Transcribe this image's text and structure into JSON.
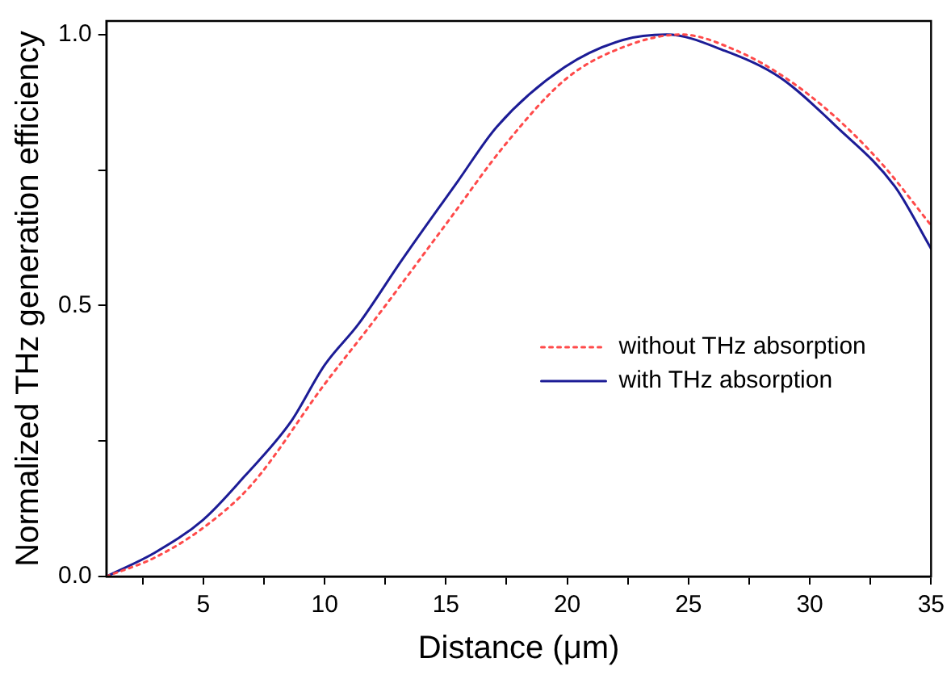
{
  "chart_data": {
    "type": "line",
    "xlabel": "Distance (μm)",
    "ylabel": "Normalized THz generation efficiency",
    "xlim": [
      1,
      35
    ],
    "ylim": [
      0,
      1.025
    ],
    "xticks": [
      {
        "value": 2.5,
        "label": null
      },
      5,
      {
        "value": 7.5,
        "label": null
      },
      10,
      {
        "value": 12.5,
        "label": null
      },
      15,
      {
        "value": 17.5,
        "label": null
      },
      20,
      {
        "value": 22.5,
        "label": null
      },
      25,
      {
        "value": 27.5,
        "label": null
      },
      30,
      {
        "value": 32.5,
        "label": null
      },
      35
    ],
    "yticks": [
      {
        "value": 0,
        "label": "0.0"
      },
      {
        "value": 0.25,
        "label": null
      },
      {
        "value": 0.5,
        "label": "0.5"
      },
      {
        "value": 0.75,
        "label": null
      },
      {
        "value": 1,
        "label": "1.0"
      }
    ],
    "grid": false,
    "legend": "right",
    "marker": "none",
    "series": [
      {
        "name": "without THz absorption",
        "color": "#ff4a4a",
        "line_style": "dotted",
        "x": [
          1,
          3,
          5,
          7,
          10,
          12,
          15,
          17.5,
          20,
          22.5,
          24.7,
          27,
          29,
          31,
          33,
          35
        ],
        "values": [
          0,
          0.035,
          0.09,
          0.17,
          0.355,
          0.47,
          0.65,
          0.8,
          0.92,
          0.98,
          1,
          0.97,
          0.92,
          0.85,
          0.76,
          0.648
        ]
      },
      {
        "name": "with THz absorption",
        "color": "#1c1c96",
        "line_style": "solid",
        "x": [
          1,
          3,
          5,
          6.7,
          8.6,
          10,
          11.4,
          13.2,
          15.5,
          17.1,
          19.9,
          22.3,
          24.1,
          26.5,
          28.8,
          31.1,
          33.5,
          35
        ],
        "values": [
          0,
          0.044,
          0.105,
          0.185,
          0.285,
          0.39,
          0.466,
          0.585,
          0.73,
          0.83,
          0.94,
          0.99,
          1,
          0.97,
          0.92,
          0.83,
          0.72,
          0.605
        ]
      }
    ]
  }
}
